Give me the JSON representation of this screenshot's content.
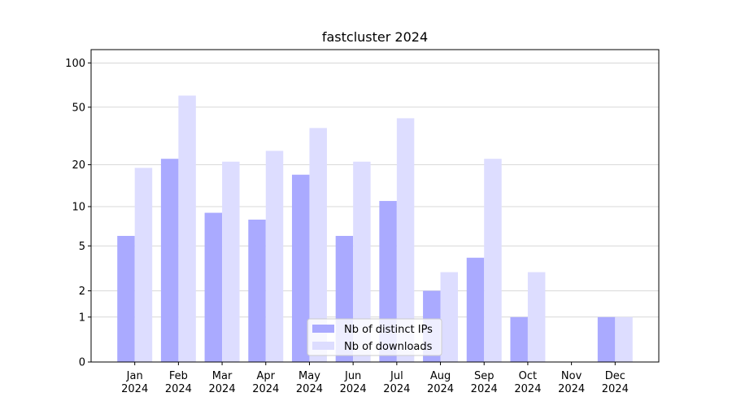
{
  "chart_data": {
    "type": "bar",
    "title": "fastcluster 2024",
    "categories": [
      "Jan 2024",
      "Feb 2024",
      "Mar 2024",
      "Apr 2024",
      "May 2024",
      "Jun 2024",
      "Jul 2024",
      "Aug 2024",
      "Sep 2024",
      "Oct 2024",
      "Nov 2024",
      "Dec 2024"
    ],
    "series": [
      {
        "name": "Nb of distinct IPs",
        "color": "#aaaaff",
        "values": [
          6,
          22,
          9,
          8,
          17,
          6,
          11,
          2,
          4,
          1,
          0,
          1
        ]
      },
      {
        "name": "Nb of downloads",
        "color": "#ddddff",
        "values": [
          19,
          60,
          21,
          25,
          36,
          21,
          42,
          3,
          22,
          3,
          0,
          1
        ]
      }
    ],
    "yscale": "log1p",
    "ylim": [
      0,
      123
    ],
    "yticks": [
      0,
      1,
      2,
      5,
      10,
      20,
      50,
      100
    ],
    "grid": true,
    "legend": "lower center"
  }
}
